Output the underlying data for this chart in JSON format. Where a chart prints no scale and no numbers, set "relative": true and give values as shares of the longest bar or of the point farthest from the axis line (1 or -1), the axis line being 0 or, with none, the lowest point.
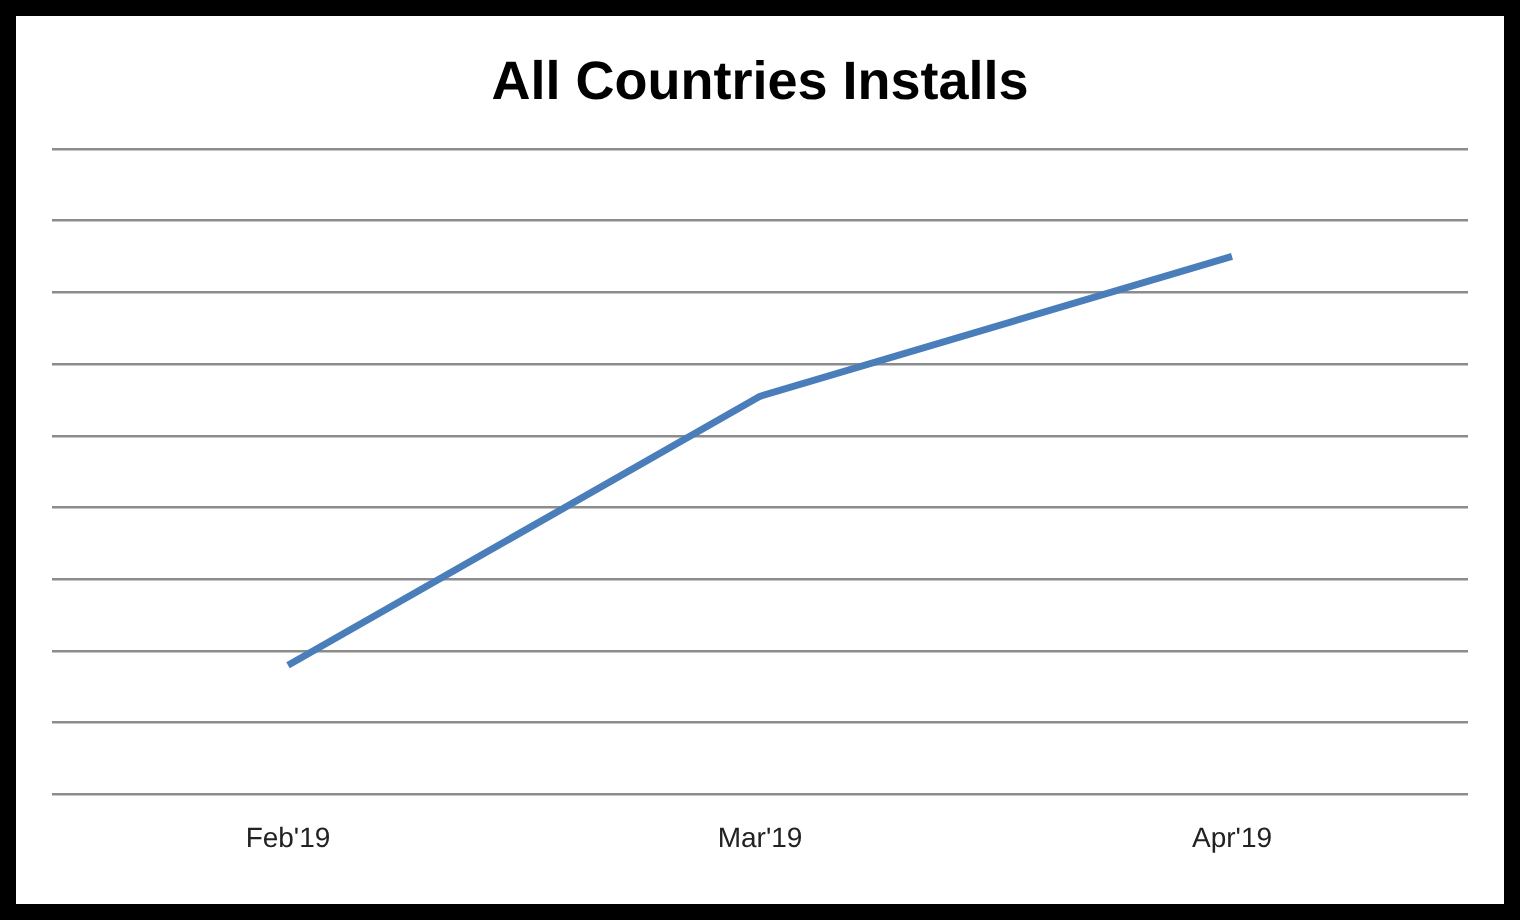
{
  "chart_data": {
    "type": "line",
    "title": "All Countries Installs",
    "categories": [
      "Feb'19",
      "Mar'19",
      "Apr'19"
    ],
    "relative": true,
    "series": [
      {
        "color": "#4a7ebb",
        "values": [
          0.24,
          0.74,
          1
        ]
      }
    ],
    "grid": "y",
    "legend": false,
    "marker": "none",
    "line_style": "solid"
  }
}
